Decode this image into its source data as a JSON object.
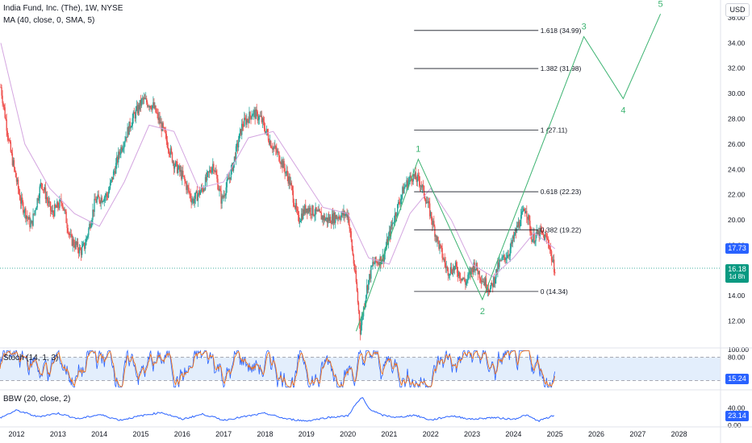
{
  "header": {
    "title": "India Fund, Inc. (The), 1W, NYSE",
    "ma_legend": "MA (40, close, 0, SMA, 5)",
    "stoch_legend": "Stoch (14, 1, 3)",
    "bbw_legend": "BBW (20, close, 2)",
    "currency": "USD"
  },
  "colors": {
    "accent_green": "#26a69a",
    "candle_up": "#26a69a",
    "candle_down": "#ef5350",
    "ma_line": "#d4a6e0",
    "wave_line": "#3cb371",
    "fib_line": "#131722",
    "stoch_k": "#2962ff",
    "stoch_d": "#ff6d00",
    "bbw_line": "#2962ff",
    "ma_tag": "#2962ff",
    "price_tag": "#089981"
  },
  "tags": {
    "ma_value": "17.73",
    "price_value": "16.18",
    "price_countdown": "1d 8h",
    "stoch_value": "15.24",
    "bbw_value": "23.14"
  },
  "chart_data": [
    {
      "type": "line",
      "title": "India Fund, Inc. (The), 1W, NYSE",
      "x_axis": {
        "ticks": [
          "2012",
          "2013",
          "2014",
          "2015",
          "2016",
          "2017",
          "2018",
          "2019",
          "2020",
          "2021",
          "2022",
          "2023",
          "2024",
          "2025",
          "2026",
          "2027",
          "2028"
        ],
        "range": [
          2011.6,
          2029.0
        ]
      },
      "y_axis": {
        "ticks": [
          "12.00",
          "14.00",
          "16.00",
          "18.00",
          "20.00",
          "22.00",
          "24.00",
          "26.00",
          "28.00",
          "30.00",
          "32.00",
          "34.00",
          "36.00"
        ],
        "range": [
          10.0,
          37.4
        ]
      },
      "price_anchors": {
        "x": [
          2011.62,
          2011.85,
          2012.1,
          2012.35,
          2012.6,
          2012.85,
          2013.1,
          2013.3,
          2013.55,
          2013.65,
          2013.9,
          2014.2,
          2014.5,
          2014.8,
          2015.05,
          2015.3,
          2015.55,
          2015.8,
          2016.0,
          2016.25,
          2016.5,
          2016.75,
          2016.95,
          2017.2,
          2017.45,
          2017.7,
          2017.9,
          2018.15,
          2018.35,
          2018.6,
          2018.8,
          2019.0,
          2019.25,
          2019.5,
          2019.75,
          2020.0,
          2020.2,
          2020.3,
          2020.45,
          2020.6,
          2020.85,
          2021.1,
          2021.35,
          2021.55,
          2021.75,
          2021.95,
          2022.15,
          2022.4,
          2022.6,
          2022.85,
          2023.05,
          2023.25,
          2023.45,
          2023.65,
          2023.9,
          2024.1,
          2024.3,
          2024.45,
          2024.65,
          2024.85,
          2024.95,
          2025.0
        ],
        "close": [
          30.5,
          25.5,
          21.5,
          19.5,
          23.0,
          20.5,
          21.5,
          18.5,
          17.5,
          18.0,
          21.5,
          22.0,
          25.5,
          28.0,
          29.5,
          29.0,
          27.0,
          24.5,
          23.5,
          21.5,
          22.5,
          24.5,
          21.5,
          24.0,
          27.5,
          28.5,
          28.0,
          26.0,
          25.0,
          23.0,
          20.0,
          21.0,
          20.5,
          20.0,
          20.3,
          20.5,
          15.0,
          11.3,
          14.5,
          16.5,
          17.0,
          20.0,
          22.5,
          23.5,
          23.0,
          21.0,
          18.5,
          16.0,
          16.2,
          15.0,
          16.5,
          15.3,
          14.5,
          16.5,
          17.5,
          19.5,
          21.0,
          18.5,
          19.0,
          18.3,
          16.5,
          16.18
        ]
      },
      "moving_average": {
        "name": "MA (40, close, 0, SMA, 5)",
        "x": [
          2011.62,
          2012.2,
          2012.8,
          2013.4,
          2014.0,
          2014.6,
          2015.2,
          2015.8,
          2016.4,
          2017.0,
          2017.6,
          2018.2,
          2018.8,
          2019.4,
          2020.0,
          2020.5,
          2021.0,
          2021.5,
          2022.0,
          2022.5,
          2023.0,
          2023.5,
          2024.0,
          2024.5,
          2025.0
        ],
        "y": [
          34.0,
          26.0,
          22.5,
          20.5,
          19.5,
          23.0,
          27.5,
          27.0,
          22.5,
          23.0,
          26.5,
          27.0,
          24.0,
          21.0,
          20.5,
          17.0,
          16.5,
          20.5,
          22.5,
          20.0,
          16.5,
          15.5,
          17.0,
          19.0,
          17.73
        ]
      },
      "elliott_wave": {
        "x": [
          2020.2,
          2021.7,
          2023.25,
          2025.7,
          2026.65,
          2027.55
        ],
        "y": [
          11.2,
          24.8,
          13.7,
          34.5,
          29.6,
          36.3
        ],
        "labels": [
          "1",
          "2",
          "3",
          "4",
          "5"
        ]
      },
      "fibonacci_levels": [
        {
          "ratio": "0",
          "value": 14.34,
          "label": "0 (14.34)"
        },
        {
          "ratio": "0.382",
          "value": 19.22,
          "label": "0.382 (19.22)"
        },
        {
          "ratio": "0.618",
          "value": 22.23,
          "label": "0.618 (22.23)"
        },
        {
          "ratio": "1",
          "value": 27.11,
          "label": "1 (27.11)"
        },
        {
          "ratio": "1.382",
          "value": 31.98,
          "label": "1.382 (31.98)"
        },
        {
          "ratio": "1.618",
          "value": 34.99,
          "label": "1.618 (34.99)"
        }
      ],
      "last_price": 16.18,
      "ma_last": 17.73,
      "grid": false
    },
    {
      "type": "line",
      "title": "Stoch (14, 1, 3)",
      "y_axis": {
        "ticks": [
          "100.00",
          "80.00"
        ],
        "range": [
          0,
          100
        ]
      },
      "band": [
        20,
        80
      ],
      "last_value": 15.24
    },
    {
      "type": "line",
      "title": "BBW (20, close, 2)",
      "y_axis": {
        "ticks": [
          "40.00",
          "0.00"
        ],
        "range": [
          0,
          75
        ]
      },
      "x": [
        2011.62,
        2012.0,
        2012.5,
        2013.0,
        2013.5,
        2014.0,
        2014.5,
        2015.0,
        2015.5,
        2016.0,
        2016.5,
        2017.0,
        2017.5,
        2018.0,
        2018.5,
        2019.0,
        2019.5,
        2020.0,
        2020.2,
        2020.35,
        2020.5,
        2020.8,
        2021.2,
        2021.6,
        2022.0,
        2022.5,
        2023.0,
        2023.5,
        2024.0,
        2024.3,
        2024.6,
        2025.0
      ],
      "y": [
        18,
        35,
        20,
        28,
        15,
        25,
        12,
        22,
        30,
        14,
        26,
        12,
        20,
        28,
        15,
        10,
        18,
        22,
        50,
        65,
        40,
        24,
        18,
        24,
        12,
        22,
        14,
        18,
        14,
        24,
        10,
        23.14
      ],
      "last_value": 23.14
    }
  ]
}
